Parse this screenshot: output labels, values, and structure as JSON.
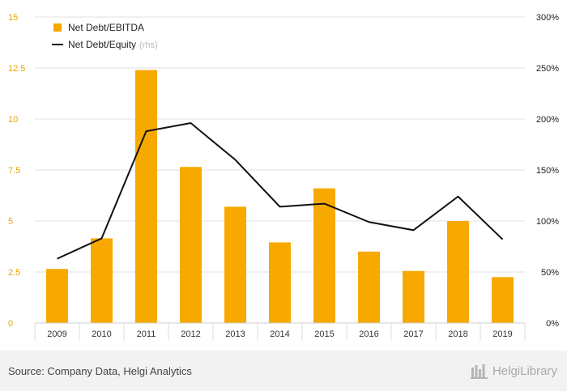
{
  "chart_data": {
    "type": "bar+line",
    "categories": [
      "2009",
      "2010",
      "2011",
      "2012",
      "2013",
      "2014",
      "2015",
      "2016",
      "2017",
      "2018",
      "2019"
    ],
    "series": [
      {
        "name": "Net Debt/EBITDA",
        "type": "bar",
        "axis": "left",
        "color": "#f7a900",
        "values": [
          2.65,
          4.15,
          12.4,
          7.65,
          5.7,
          3.95,
          6.6,
          3.5,
          2.55,
          5.0,
          2.25
        ]
      },
      {
        "name": "Net Debt/Equity",
        "name_suffix": "(rhs)",
        "type": "line",
        "axis": "right",
        "color": "#111111",
        "values": [
          63,
          83,
          188,
          196,
          160,
          114,
          117,
          99,
          91,
          124,
          82
        ]
      }
    ],
    "left_axis": {
      "ylim": [
        0,
        15
      ],
      "ticks": [
        "0",
        "2.5",
        "5",
        "7.5",
        "10",
        "12.5",
        "15"
      ],
      "color": "#e8a400"
    },
    "right_axis": {
      "ylim": [
        0,
        300
      ],
      "ticks": [
        "0%",
        "50%",
        "100%",
        "150%",
        "200%",
        "250%",
        "300%"
      ]
    },
    "grid": true,
    "legend_position": "top-left"
  },
  "footer": {
    "source": "Source: Company Data, Helgi Analytics",
    "brand": "HelgiLibrary"
  }
}
